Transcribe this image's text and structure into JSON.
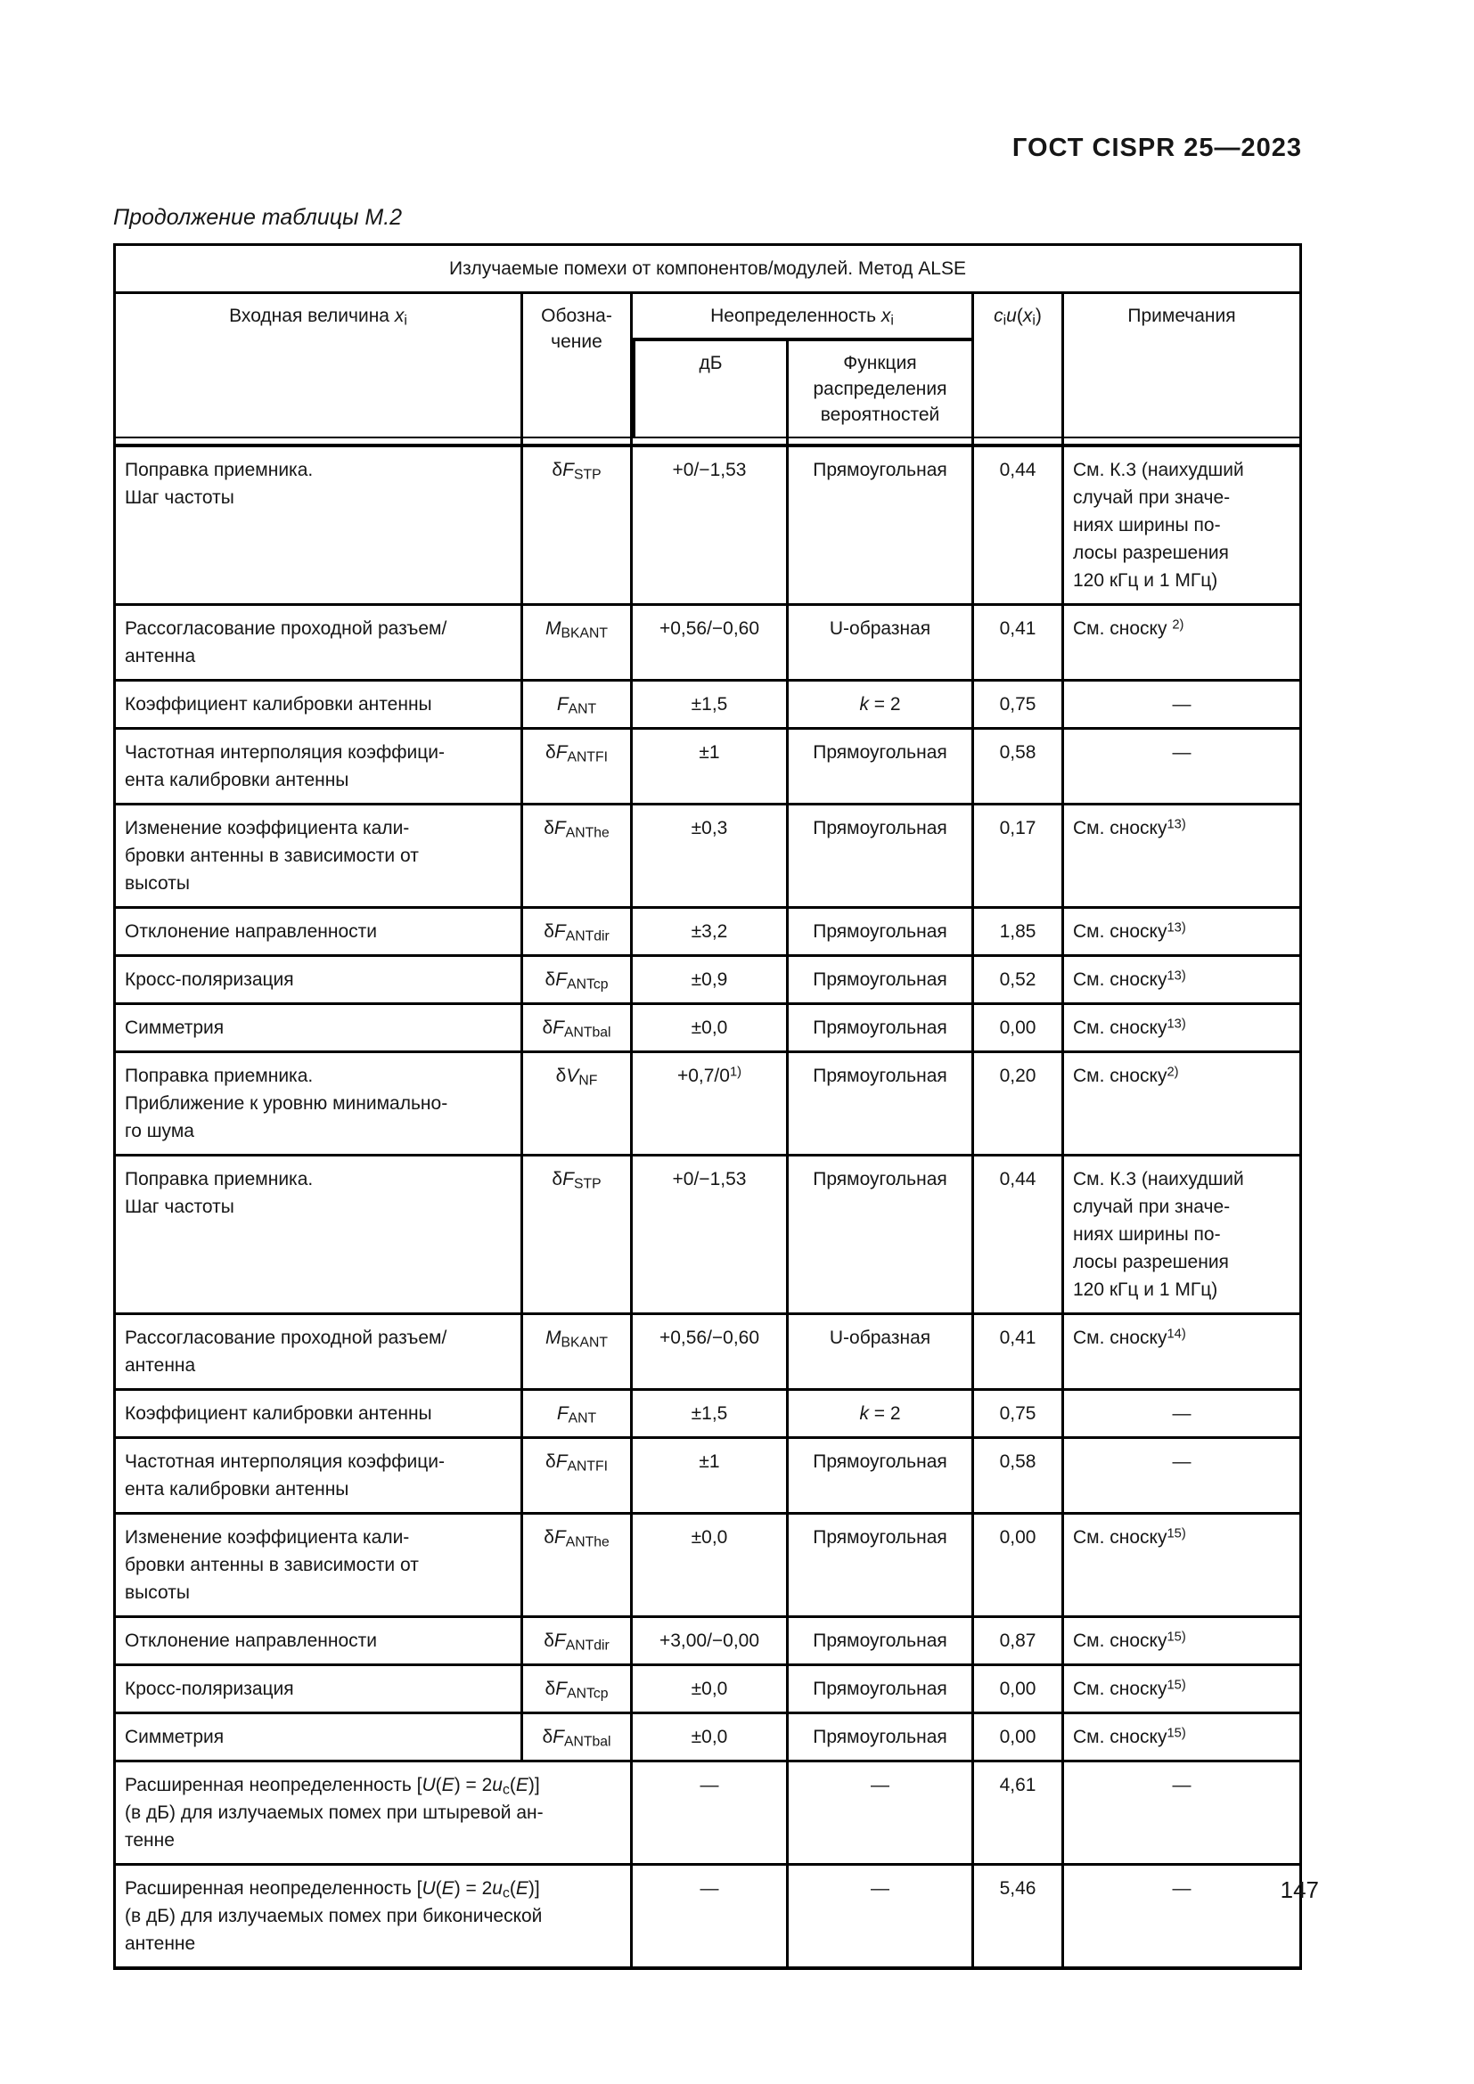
{
  "page": {
    "doc_header": "ГОСТ CISPR 25—2023",
    "table_caption": "Продолжение таблицы М.2",
    "page_number": "147"
  },
  "table": {
    "title": "Излучаемые помехи от компонентов/модулей. Метод ALSE",
    "headers": {
      "input_quantity": "Входная величина *x*_i_",
      "designation": "Обозна-\nчение",
      "uncertainty": "Неопределенность *x*_i_",
      "db": "дБ",
      "distribution": "Функция распределения вероятностей",
      "ciuxi": "*c*_i_*u*(*x*_i_)",
      "notes": "Примечания"
    },
    "rows": [
      {
        "quantity": "Поправка приемника.\nШаг частоты",
        "symbol": "δ*F*_STP_",
        "db": "+0/−1,53",
        "dist": "Прямоугольная",
        "ciu": "0,44",
        "note": "См. К.3 (наихудший\nслучай при значе-\nниях ширины по-\nлосы разрешения\n120 кГц и 1 МГц)"
      },
      {
        "quantity": "Рассогласование проходной разъем/\nантенна",
        "symbol": "*M*_BKANT_",
        "db": "+0,56/−0,60",
        "dist": "U-образная",
        "ciu": "0,41",
        "note": "См. сноску ^2)^"
      },
      {
        "quantity": "Коэффициент калибровки антенны",
        "symbol": "*F*_ANT_",
        "db": "±1,5",
        "dist": "*k* = 2",
        "ciu": "0,75",
        "note": "—"
      },
      {
        "quantity": "Частотная интерполяция коэффици-\nента калибровки антенны",
        "symbol": "δ*F*_ANTFI_",
        "db": "±1",
        "dist": "Прямоугольная",
        "ciu": "0,58",
        "note": "—"
      },
      {
        "quantity": "Изменение коэффициента кали-\nбровки антенны в зависимости от\nвысоты",
        "symbol": "δ*F*_ANThe_",
        "db": "±0,3",
        "dist": "Прямоугольная",
        "ciu": "0,17",
        "note": "См. сноску^13)^"
      },
      {
        "quantity": "Отклонение направленности",
        "symbol": "δ*F*_ANTdir_",
        "db": "±3,2",
        "dist": "Прямоугольная",
        "ciu": "1,85",
        "note": "См. сноску^13)^"
      },
      {
        "quantity": "Кросс-поляризация",
        "symbol": "δ*F*_ANTcp_",
        "db": "±0,9",
        "dist": "Прямоугольная",
        "ciu": "0,52",
        "note": "См. сноску^13)^"
      },
      {
        "quantity": "Симметрия",
        "symbol": "δ*F*_ANTbal_",
        "db": "±0,0",
        "dist": "Прямоугольная",
        "ciu": "0,00",
        "note": "См. сноску^13)^"
      },
      {
        "quantity": "Поправка приемника.\nПриближение к уровню минимально-\nго шума",
        "symbol": "δ*V*_NF_",
        "db": "+0,7/0^1)^",
        "dist": "Прямоугольная",
        "ciu": "0,20",
        "note": "См. сноску^2)^"
      },
      {
        "quantity": "Поправка приемника.\nШаг частоты",
        "symbol": "δ*F*_STP_",
        "db": "+0/−1,53",
        "dist": "Прямоугольная",
        "ciu": "0,44",
        "note": "См. К.3 (наихудший\nслучай при значе-\nниях ширины по-\nлосы разрешения\n120 кГц и 1 МГц)"
      },
      {
        "quantity": "Рассогласование проходной разъем/\nантенна",
        "symbol": "*M*_BKANT_",
        "db": "+0,56/−0,60",
        "dist": "U-образная",
        "ciu": "0,41",
        "note": "См. сноску^14)^"
      },
      {
        "quantity": "Коэффициент калибровки антенны",
        "symbol": "*F*_ANT_",
        "db": "±1,5",
        "dist": "*k* = 2",
        "ciu": "0,75",
        "note": "—"
      },
      {
        "quantity": "Частотная интерполяция коэффици-\nента калибровки антенны",
        "symbol": "δ*F*_ANTFI_",
        "db": "±1",
        "dist": "Прямоугольная",
        "ciu": "0,58",
        "note": "—"
      },
      {
        "quantity": "Изменение коэффициента кали-\nбровки антенны в зависимости от\nвысоты",
        "symbol": "δ*F*_ANThe_",
        "db": "±0,0",
        "dist": "Прямоугольная",
        "ciu": "0,00",
        "note": "См. сноску^15)^"
      },
      {
        "quantity": "Отклонение направленности",
        "symbol": "δ*F*_ANTdir_",
        "db": "+3,00/−0,00",
        "dist": "Прямоугольная",
        "ciu": "0,87",
        "note": "См. сноску^15)^"
      },
      {
        "quantity": "Кросс-поляризация",
        "symbol": "δ*F*_ANTcp_",
        "db": "±0,0",
        "dist": "Прямоугольная",
        "ciu": "0,00",
        "note": "См. сноску^15)^"
      },
      {
        "quantity": "Симметрия",
        "symbol": "δ*F*_ANTbal_",
        "db": "±0,0",
        "dist": "Прямоугольная",
        "ciu": "0,00",
        "note": "См. сноску^15)^"
      },
      {
        "quantity": "Расширенная неопределенность [*U*(*E*) = 2*u*_c_(*E*)]\n(в дБ) для излучаемых помех при штыревой ан-\nтенне",
        "symbol": null,
        "db": "—",
        "dist": "—",
        "ciu": "4,61",
        "note": "—"
      },
      {
        "quantity": "Расширенная неопределенность [*U*(*E*) = 2*u*_c_(*E*)]\n(в дБ) для излучаемых помех при биконической\nантенне",
        "symbol": null,
        "db": "—",
        "dist": "—",
        "ciu": "5,46",
        "note": "—"
      }
    ]
  }
}
